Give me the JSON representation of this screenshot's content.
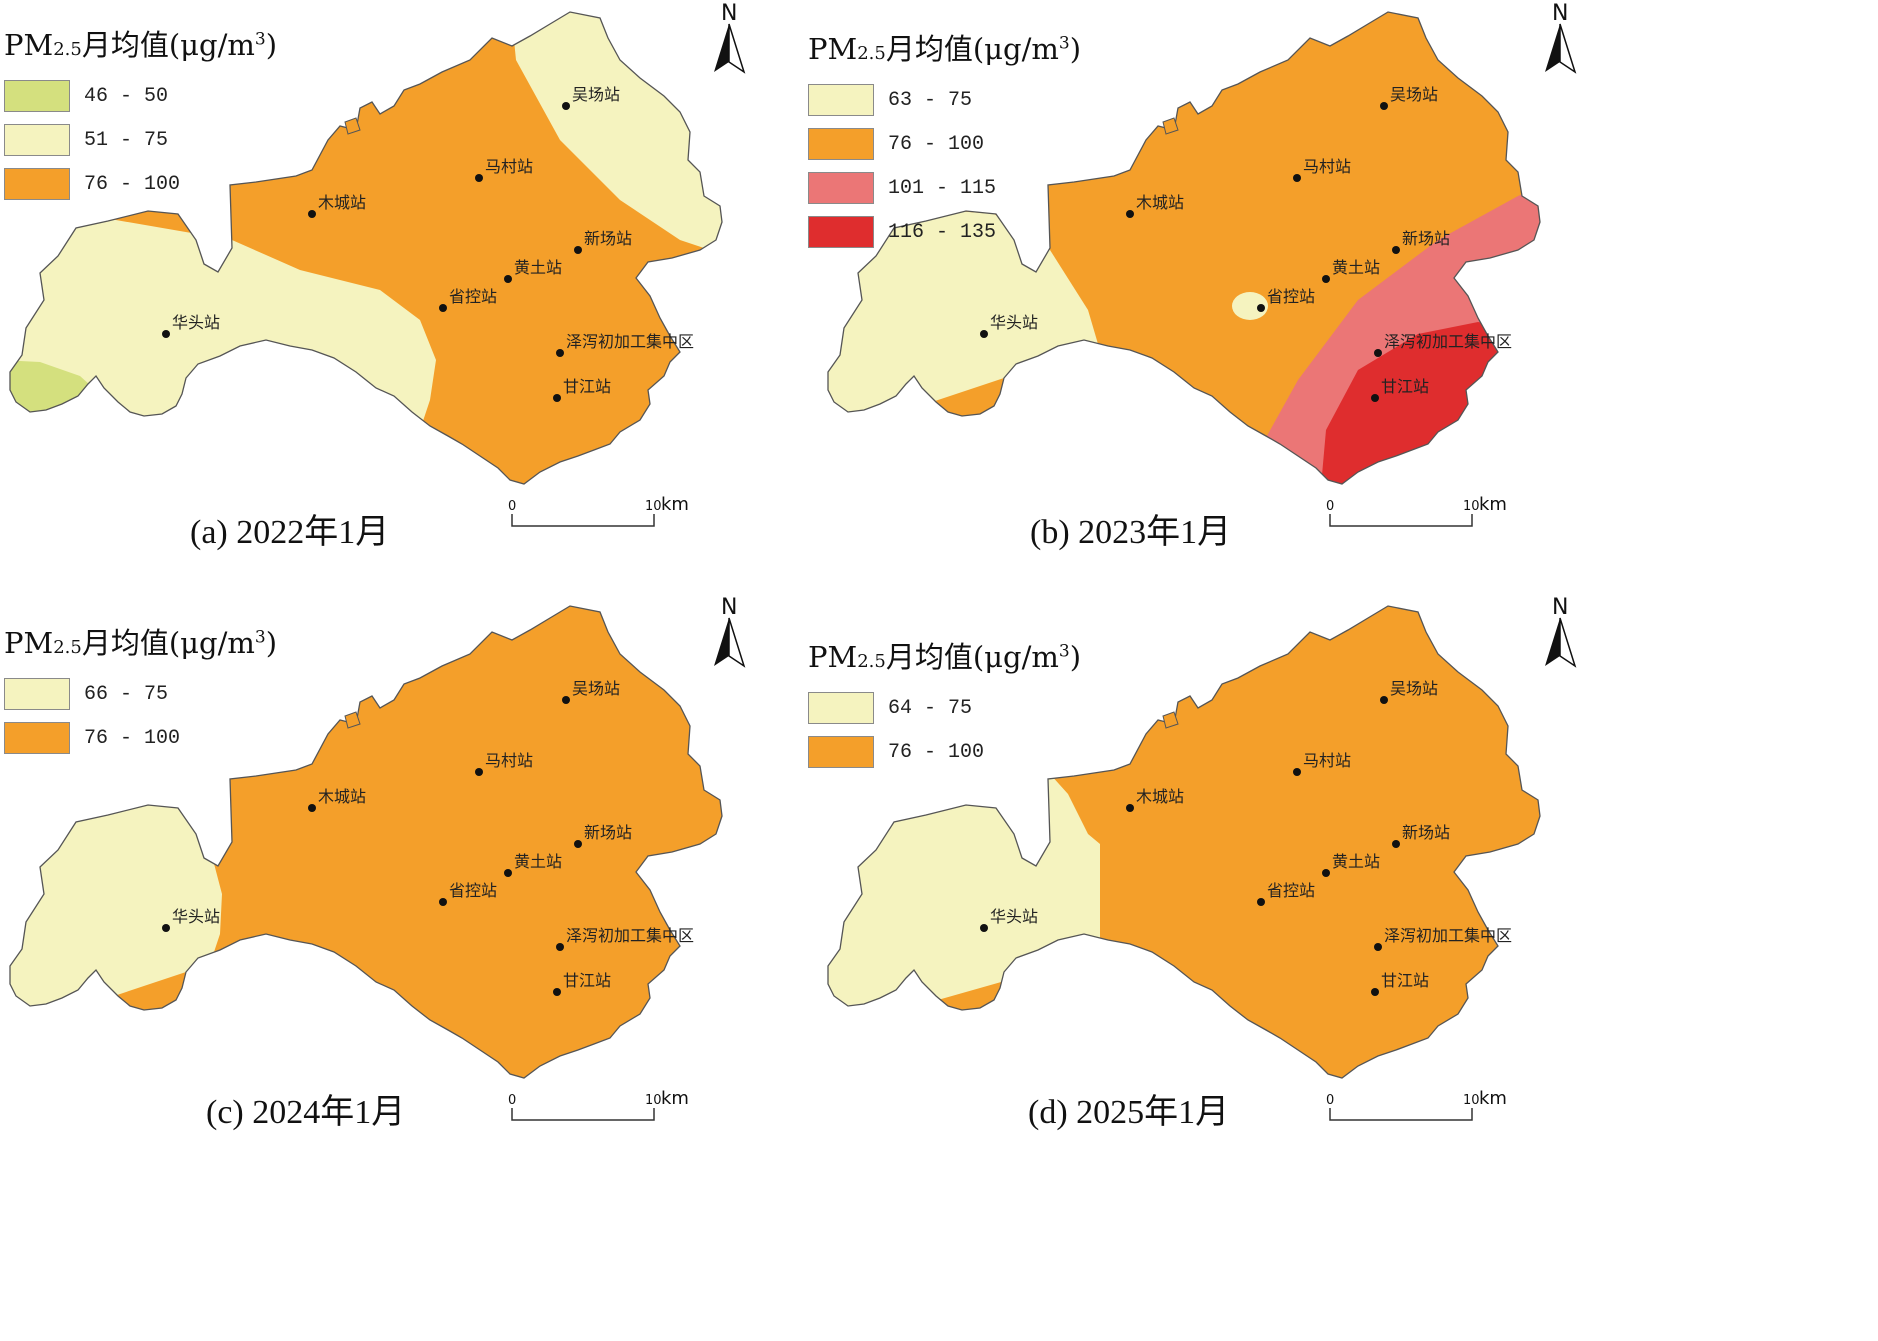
{
  "legend_title": {
    "prefix": "PM",
    "sub": "2.5",
    "main": "月均值(μg/m",
    "sup": "3",
    "close": ")"
  },
  "colors": {
    "yellow_green": "#d4e07e",
    "pale_yellow": "#f5f3bf",
    "orange": "#f49f2a",
    "pink": "#eb7676",
    "red": "#df2d2e",
    "outline": "#555555"
  },
  "stations": {
    "wuchang": "吴场站",
    "macun": "马村站",
    "mucheng": "木城站",
    "xinchang": "新场站",
    "huangtu": "黄土站",
    "shengkong": "省控站",
    "huatou": "华头站",
    "zexie": "泽泻初加工集中区",
    "ganjiang": "甘江站"
  },
  "north_label": "N",
  "scale": {
    "zero": "0",
    "ten": "10",
    "unit": "km"
  },
  "panels": [
    {
      "id": "a",
      "caption": "(a) 2022年1月",
      "legend": [
        {
          "range": "46 - 50",
          "color": "#d4e07e"
        },
        {
          "range": "51 - 75",
          "color": "#f5f3bf"
        },
        {
          "range": "76 - 100",
          "color": "#f49f2a"
        }
      ]
    },
    {
      "id": "b",
      "caption": "(b) 2023年1月",
      "legend": [
        {
          "range": "63 - 75",
          "color": "#f5f3bf"
        },
        {
          "range": "76 - 100",
          "color": "#f49f2a"
        },
        {
          "range": "101 - 115",
          "color": "#eb7676"
        },
        {
          "range": "116 - 135",
          "color": "#df2d2e"
        }
      ]
    },
    {
      "id": "c",
      "caption": "(c) 2024年1月",
      "legend": [
        {
          "range": "66 - 75",
          "color": "#f5f3bf"
        },
        {
          "range": "76 - 100",
          "color": "#f49f2a"
        }
      ]
    },
    {
      "id": "d",
      "caption": "(d) 2025年1月",
      "legend": [
        {
          "range": "64 - 75",
          "color": "#f5f3bf"
        },
        {
          "range": "76 - 100",
          "color": "#f49f2a"
        }
      ]
    }
  ]
}
